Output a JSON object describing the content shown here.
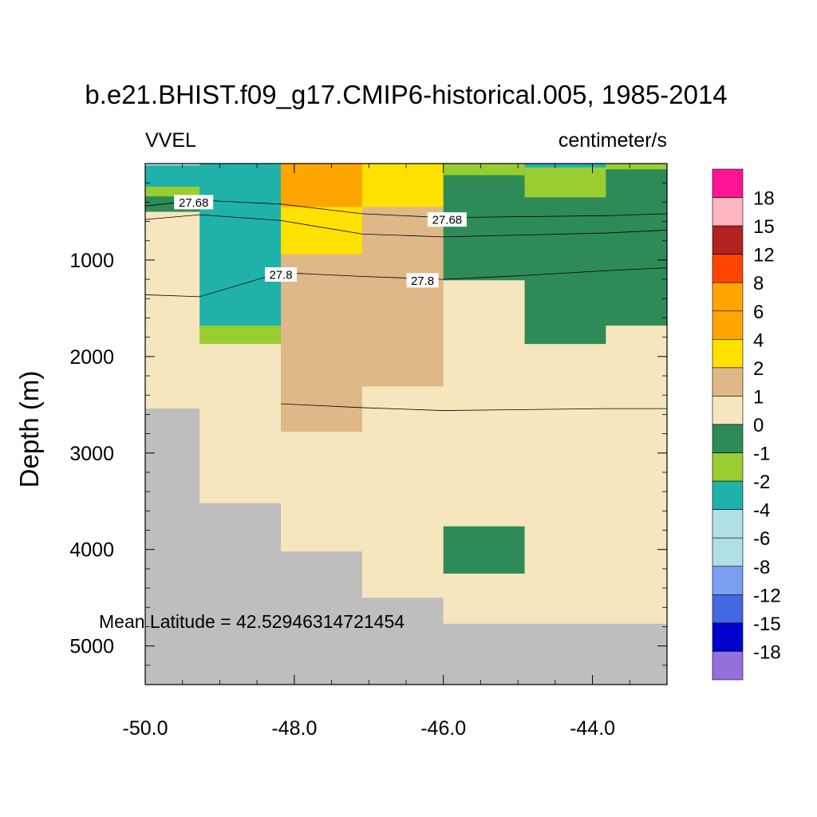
{
  "chart_data": {
    "type": "heatmap",
    "title": "b.e21.BHIST.f09_g17.CMIP6-historical.005, 1985-2014",
    "left_label": "VVEL",
    "right_label": "centimeter/s",
    "ylabel": "Depth (m)",
    "xlabel": "",
    "x_ticks": [
      "-50.0",
      "-48.0",
      "-46.0",
      "-44.0"
    ],
    "x_tick_values": [
      -50,
      -48,
      -46,
      -44
    ],
    "y_ticks": [
      "1000",
      "2000",
      "3000",
      "4000",
      "5000"
    ],
    "y_tick_values": [
      1000,
      2000,
      3000,
      4000,
      5000
    ],
    "xlim": [
      -50,
      -43
    ],
    "ylim": [
      5400,
      0
    ],
    "annotation": "Mean Latitude = 42.52946314721454",
    "colorbar": {
      "labels": [
        "18",
        "15",
        "12",
        "8",
        "6",
        "4",
        "2",
        "1",
        "0",
        "-1",
        "-2",
        "-4",
        "-6",
        "-8",
        "-12",
        "-15",
        "-18"
      ],
      "colors": [
        "#ff1493",
        "#ffb6c1",
        "#b22222",
        "#ff4500",
        "#ffa500",
        "#ffa500",
        "#ffe100",
        "#deb887",
        "#f5e6be",
        "#2e8b57",
        "#9acd32",
        "#20b2aa",
        "#b0e0e6",
        "#b0dfe5",
        "#7b9ff0",
        "#4169e1",
        "#0000cd",
        "#9370db"
      ]
    },
    "x_edges": [
      -50,
      -49.27,
      -48.18,
      -47.09,
      -46.0,
      -44.91,
      -43.82,
      -43.0
    ],
    "columns": [
      {
        "cells": [
          {
            "z0": 0,
            "z1": 20,
            "c": "#b0dfe5"
          },
          {
            "z0": 20,
            "z1": 240,
            "c": "#20b2aa"
          },
          {
            "z0": 240,
            "z1": 340,
            "c": "#9acd32"
          },
          {
            "z0": 340,
            "z1": 500,
            "c": "#2e8b57"
          },
          {
            "z0": 500,
            "z1": 2540,
            "c": "#f5e6be"
          },
          {
            "z0": 2540,
            "z1": 5400,
            "c": "#bebebe"
          }
        ]
      },
      {
        "cells": [
          {
            "z0": 0,
            "z1": 1680,
            "c": "#20b2aa"
          },
          {
            "z0": 1680,
            "z1": 1870,
            "c": "#9acd32"
          },
          {
            "z0": 1870,
            "z1": 3520,
            "c": "#f5e6be"
          },
          {
            "z0": 3520,
            "z1": 5400,
            "c": "#bebebe"
          }
        ]
      },
      {
        "cells": [
          {
            "z0": 0,
            "z1": 450,
            "c": "#ffa500"
          },
          {
            "z0": 450,
            "z1": 940,
            "c": "#ffe100"
          },
          {
            "z0": 940,
            "z1": 2780,
            "c": "#deb887"
          },
          {
            "z0": 2780,
            "z1": 4020,
            "c": "#f5e6be"
          },
          {
            "z0": 4020,
            "z1": 5400,
            "c": "#bebebe"
          }
        ]
      },
      {
        "cells": [
          {
            "z0": 0,
            "z1": 450,
            "c": "#ffe100"
          },
          {
            "z0": 450,
            "z1": 1490,
            "c": "#deb887"
          },
          {
            "z0": 1490,
            "z1": 1490,
            "c": "#f5e6be"
          },
          {
            "z0": 1490,
            "z1": 2310,
            "c": "#deb887"
          },
          {
            "z0": 2310,
            "z1": 4500,
            "c": "#f5e6be"
          },
          {
            "z0": 4500,
            "z1": 5400,
            "c": "#bebebe"
          }
        ]
      },
      {
        "cells": [
          {
            "z0": 0,
            "z1": 120,
            "c": "#9acd32"
          },
          {
            "z0": 120,
            "z1": 1210,
            "c": "#2e8b57"
          },
          {
            "z0": 1210,
            "z1": 3760,
            "c": "#f5e6be"
          },
          {
            "z0": 3760,
            "z1": 4250,
            "c": "#2e8b57"
          },
          {
            "z0": 4250,
            "z1": 4770,
            "c": "#f5e6be"
          },
          {
            "z0": 4770,
            "z1": 5400,
            "c": "#bebebe"
          }
        ]
      },
      {
        "cells": [
          {
            "z0": 0,
            "z1": 40,
            "c": "#20b2aa"
          },
          {
            "z0": 40,
            "z1": 350,
            "c": "#9acd32"
          },
          {
            "z0": 350,
            "z1": 1870,
            "c": "#2e8b57"
          },
          {
            "z0": 1870,
            "z1": 4770,
            "c": "#f5e6be"
          },
          {
            "z0": 4770,
            "z1": 5400,
            "c": "#bebebe"
          }
        ]
      },
      {
        "cells": [
          {
            "z0": 0,
            "z1": 60,
            "c": "#9acd32"
          },
          {
            "z0": 60,
            "z1": 1680,
            "c": "#2e8b57"
          },
          {
            "z0": 1680,
            "z1": 4770,
            "c": "#f5e6be"
          },
          {
            "z0": 4770,
            "z1": 5400,
            "c": "#bebebe"
          }
        ]
      }
    ],
    "contours": [
      {
        "label": "27.68",
        "points": [
          [
            -50,
            440
          ],
          [
            -49.27,
            380
          ],
          [
            -48.18,
            420
          ],
          [
            -47.09,
            520
          ],
          [
            -46.0,
            560
          ],
          [
            -44.91,
            550
          ],
          [
            -43.82,
            540
          ],
          [
            -43.0,
            520
          ]
        ]
      },
      {
        "label": "",
        "points": [
          [
            -50,
            580
          ],
          [
            -49.27,
            530
          ],
          [
            -48.18,
            590
          ],
          [
            -47.09,
            730
          ],
          [
            -46.0,
            760
          ],
          [
            -44.91,
            740
          ],
          [
            -43.82,
            720
          ],
          [
            -43.0,
            690
          ]
        ]
      },
      {
        "label": "27.8",
        "points": [
          [
            -50,
            1360
          ],
          [
            -49.27,
            1380
          ],
          [
            -48.18,
            1130
          ],
          [
            -47.09,
            1170
          ],
          [
            -46.0,
            1200
          ],
          [
            -44.91,
            1160
          ],
          [
            -43.82,
            1110
          ],
          [
            -43.0,
            1080
          ]
        ]
      },
      {
        "label": "",
        "points": [
          [
            -48.18,
            2490
          ],
          [
            -47.09,
            2530
          ],
          [
            -46.0,
            2560
          ],
          [
            -44.91,
            2550
          ],
          [
            -43.82,
            2540
          ],
          [
            -43.0,
            2540
          ]
        ]
      }
    ],
    "contour_labels": [
      {
        "text": "27.68",
        "x": -49.35,
        "z": 400
      },
      {
        "text": "27.68",
        "x": -45.95,
        "z": 580
      },
      {
        "text": "27.8",
        "x": -48.18,
        "z": 1150
      },
      {
        "text": "27.8",
        "x": -46.28,
        "z": 1210
      }
    ]
  }
}
